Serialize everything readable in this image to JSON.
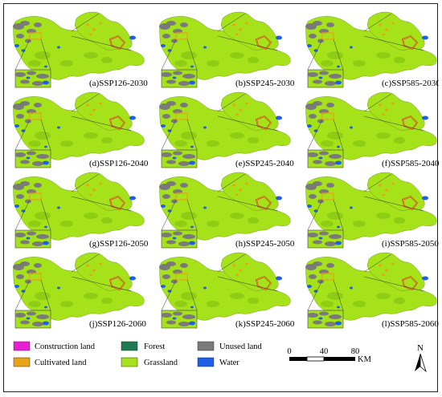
{
  "figure": {
    "panels": [
      {
        "label": "(a)SSP126-2030",
        "scenario": "SSP126",
        "year": "2030"
      },
      {
        "label": "(b)SSP245-2030",
        "scenario": "SSP245",
        "year": "2030"
      },
      {
        "label": "(c)SSP585-2030",
        "scenario": "SSP585",
        "year": "2030"
      },
      {
        "label": "(d)SSP126-2040",
        "scenario": "SSP126",
        "year": "2040"
      },
      {
        "label": "(e)SSP245-2040",
        "scenario": "SSP245",
        "year": "2040"
      },
      {
        "label": "(f)SSP585-2040",
        "scenario": "SSP585",
        "year": "2040"
      },
      {
        "label": "(g)SSP126-2050",
        "scenario": "SSP126",
        "year": "2050"
      },
      {
        "label": "(h)SSP245-2050",
        "scenario": "SSP245",
        "year": "2050"
      },
      {
        "label": "(i)SSP585-2050",
        "scenario": "SSP585",
        "year": "2050"
      },
      {
        "label": "(j)SSP126-2060",
        "scenario": "SSP126",
        "year": "2060"
      },
      {
        "label": "(k)SSP245-2060",
        "scenario": "SSP245",
        "year": "2060"
      },
      {
        "label": "(l)SSP585-2060",
        "scenario": "SSP585",
        "year": "2060"
      }
    ]
  },
  "legend": {
    "items": [
      {
        "label": "Construction land",
        "color": "#e61fd2"
      },
      {
        "label": "Forest",
        "color": "#1e7a52"
      },
      {
        "label": "Unused land",
        "color": "#7a7a7a"
      },
      {
        "label": "Cultivated land",
        "color": "#e8a317"
      },
      {
        "label": "Grassland",
        "color": "#a6e21a"
      },
      {
        "label": "Water",
        "color": "#1f5ee6"
      }
    ]
  },
  "scale_bar": {
    "ticks": [
      "0",
      "40",
      "80"
    ],
    "unit": "KM"
  },
  "north_arrow": {
    "label": "N"
  },
  "colors": {
    "grassland": "#a6e21a",
    "grassland_dark": "#86c414",
    "cultivated": "#e8a317",
    "unused": "#7a7a7a",
    "water": "#1f5ee6",
    "forest": "#1e7a52",
    "highlight_box": "#c0392b"
  }
}
